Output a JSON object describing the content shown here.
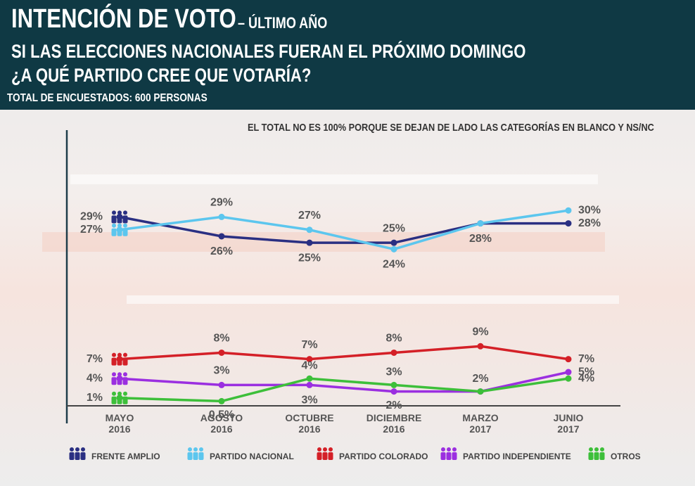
{
  "chart_data": {
    "type": "line",
    "title": "INTENCIÓN DE VOTO",
    "title_suffix": "– ÚLTIMO AÑO",
    "subtitle_lines": [
      "SI LAS ELECCIONES NACIONALES FUERAN EL PRÓXIMO DOMINGO",
      "¿A QUÉ PARTIDO CREE QUE VOTARÍA?"
    ],
    "sample_note": "TOTAL DE ENCUESTADOS: 600 PERSONAS",
    "annotation": "EL TOTAL NO ES 100% PORQUE SE DEJAN DE LADO LAS CATEGORÍAS EN BLANCO Y NS/NC",
    "categories": [
      "MAYO\n2016",
      "AGOSTO\n2016",
      "OCTUBRE\n2016",
      "DICIEMBRE\n2016",
      "MARZO\n2017",
      "JUNIO\n2017"
    ],
    "ylim": [
      0,
      31
    ],
    "series": [
      {
        "name": "FRENTE AMPLIO",
        "color": "#2a2f82",
        "values": [
          29,
          26,
          25,
          25,
          28,
          28
        ],
        "value_labels": [
          "29%",
          "26%",
          "25%",
          "25%",
          "28%",
          "28%"
        ]
      },
      {
        "name": "PARTIDO NACIONAL",
        "color": "#5cc6ee",
        "values": [
          27,
          29,
          27,
          24,
          28,
          30
        ],
        "value_labels": [
          "27%",
          "29%",
          "27%",
          "24%",
          null,
          "30%"
        ]
      },
      {
        "name": "PARTIDO COLORADO",
        "color": "#d42027",
        "values": [
          7,
          8,
          7,
          8,
          9,
          7
        ],
        "value_labels": [
          "7%",
          "8%",
          "7%",
          "8%",
          "9%",
          "7%"
        ]
      },
      {
        "name": "PARTIDO INDEPENDIENTE",
        "color": "#9b2fe0",
        "values": [
          4,
          3,
          3,
          2,
          2,
          5
        ],
        "value_labels": [
          "4%",
          "3%",
          "3%",
          "2%",
          null,
          "5%"
        ]
      },
      {
        "name": "OTROS",
        "color": "#3dbf3a",
        "values": [
          1,
          0.5,
          4,
          3,
          2,
          4
        ],
        "value_labels": [
          "1%",
          "0.5%",
          "4%",
          "3%",
          "2%",
          "4%"
        ]
      }
    ]
  }
}
